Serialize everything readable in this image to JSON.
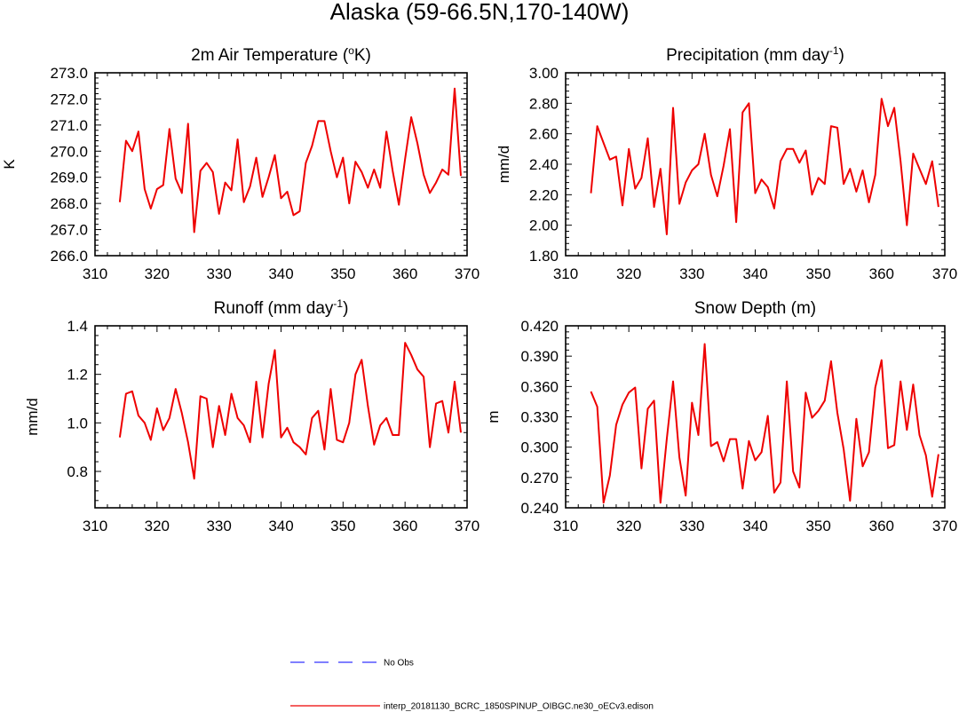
{
  "figure": {
    "title": "Alaska (59-66.5N,170-140W)"
  },
  "legend": {
    "entries": [
      {
        "label": "No Obs",
        "color": "#3333ff",
        "style": "dashed"
      },
      {
        "label": "interp_20181130_BCRC_1850SPINUP_OIBGC.ne30_oECv3.edison",
        "color": "#ee0000",
        "style": "solid"
      }
    ]
  },
  "chart_data": [
    {
      "type": "line",
      "title": "2m Air Temperature (",
      "title_sup": "o",
      "title_end": "K)",
      "ylabel": "K",
      "xlim": [
        310,
        370
      ],
      "ylim": [
        266.0,
        273.0
      ],
      "xticks": [
        310,
        320,
        330,
        340,
        350,
        360,
        370
      ],
      "yticks": [
        "266.0",
        "267.0",
        "268.0",
        "269.0",
        "270.0",
        "271.0",
        "272.0",
        "273.0"
      ],
      "ytick_values": [
        266,
        267,
        268,
        269,
        270,
        271,
        272,
        273
      ],
      "series": [
        {
          "name": "interp_20181130_BCRC_1850SPINUP_OIBGC.ne30_oECv3.edison",
          "color": "#ee0000",
          "x": [
            314,
            315,
            316,
            317,
            318,
            319,
            320,
            321,
            322,
            323,
            324,
            325,
            326,
            327,
            328,
            329,
            330,
            331,
            332,
            333,
            334,
            335,
            336,
            337,
            338,
            339,
            340,
            341,
            342,
            343,
            344,
            345,
            346,
            347,
            348,
            349,
            350,
            351,
            352,
            353,
            354,
            355,
            356,
            357,
            358,
            359,
            360,
            361,
            362,
            363,
            364,
            365,
            366,
            367,
            368,
            369
          ],
          "values": [
            268.05,
            270.4,
            270.0,
            270.75,
            268.55,
            267.8,
            268.55,
            268.7,
            270.85,
            268.95,
            268.4,
            271.05,
            266.9,
            269.25,
            269.55,
            269.2,
            267.6,
            268.8,
            268.5,
            270.45,
            268.05,
            268.65,
            269.75,
            268.25,
            269.0,
            269.85,
            268.2,
            268.45,
            267.55,
            267.7,
            269.55,
            270.2,
            271.15,
            271.15,
            270.0,
            269.0,
            269.75,
            268.0,
            269.6,
            269.2,
            268.6,
            269.3,
            268.6,
            270.75,
            269.25,
            267.95,
            269.7,
            271.3,
            270.3,
            269.1,
            268.4,
            268.8,
            269.3,
            269.1,
            272.4,
            269.05
          ]
        }
      ]
    },
    {
      "type": "line",
      "title": "Precipitation (mm day",
      "title_sup": "-1",
      "title_end": ")",
      "ylabel": "mm/d",
      "xlim": [
        310,
        370
      ],
      "ylim": [
        1.8,
        3.0
      ],
      "xticks": [
        310,
        320,
        330,
        340,
        350,
        360,
        370
      ],
      "yticks": [
        "1.80",
        "2.00",
        "2.20",
        "2.40",
        "2.60",
        "2.80",
        "3.00"
      ],
      "ytick_values": [
        1.8,
        2.0,
        2.2,
        2.4,
        2.6,
        2.8,
        3.0
      ],
      "series": [
        {
          "name": "interp_20181130_BCRC_1850SPINUP_OIBGC.ne30_oECv3.edison",
          "color": "#ee0000",
          "x": [
            314,
            315,
            316,
            317,
            318,
            319,
            320,
            321,
            322,
            323,
            324,
            325,
            326,
            327,
            328,
            329,
            330,
            331,
            332,
            333,
            334,
            335,
            336,
            337,
            338,
            339,
            340,
            341,
            342,
            343,
            344,
            345,
            346,
            347,
            348,
            349,
            350,
            351,
            352,
            353,
            354,
            355,
            356,
            357,
            358,
            359,
            360,
            361,
            362,
            363,
            364,
            365,
            366,
            367,
            368,
            369
          ],
          "values": [
            2.21,
            2.65,
            2.54,
            2.43,
            2.45,
            2.13,
            2.5,
            2.24,
            2.31,
            2.57,
            2.12,
            2.37,
            1.94,
            2.77,
            2.14,
            2.28,
            2.36,
            2.4,
            2.6,
            2.33,
            2.19,
            2.39,
            2.63,
            2.02,
            2.74,
            2.8,
            2.21,
            2.3,
            2.25,
            2.11,
            2.42,
            2.5,
            2.5,
            2.41,
            2.49,
            2.2,
            2.31,
            2.27,
            2.65,
            2.64,
            2.27,
            2.37,
            2.22,
            2.36,
            2.15,
            2.33,
            2.83,
            2.65,
            2.77,
            2.42,
            2.0,
            2.47,
            2.37,
            2.27,
            2.42,
            2.12
          ]
        }
      ]
    },
    {
      "type": "line",
      "title": "Runoff (mm day",
      "title_sup": "-1",
      "title_end": ")",
      "ylabel": "mm/d",
      "xlim": [
        310,
        370
      ],
      "ylim": [
        0.65,
        1.4
      ],
      "xticks": [
        310,
        320,
        330,
        340,
        350,
        360,
        370
      ],
      "yticks": [
        "0.8",
        "1.0",
        "1.2",
        "1.4"
      ],
      "ytick_values": [
        0.8,
        1.0,
        1.2,
        1.4
      ],
      "series": [
        {
          "name": "interp_20181130_BCRC_1850SPINUP_OIBGC.ne30_oECv3.edison",
          "color": "#ee0000",
          "x": [
            314,
            315,
            316,
            317,
            318,
            319,
            320,
            321,
            322,
            323,
            324,
            325,
            326,
            327,
            328,
            329,
            330,
            331,
            332,
            333,
            334,
            335,
            336,
            337,
            338,
            339,
            340,
            341,
            342,
            343,
            344,
            345,
            346,
            347,
            348,
            349,
            350,
            351,
            352,
            353,
            354,
            355,
            356,
            357,
            358,
            359,
            360,
            361,
            362,
            363,
            364,
            365,
            366,
            367,
            368,
            369
          ],
          "values": [
            0.94,
            1.12,
            1.13,
            1.03,
            1.0,
            0.93,
            1.06,
            0.97,
            1.02,
            1.14,
            1.04,
            0.92,
            0.77,
            1.11,
            1.1,
            0.9,
            1.07,
            0.95,
            1.12,
            1.02,
            0.99,
            0.92,
            1.17,
            0.94,
            1.16,
            1.3,
            0.94,
            0.98,
            0.92,
            0.9,
            0.87,
            1.02,
            1.05,
            0.89,
            1.14,
            0.93,
            0.92,
            1.0,
            1.2,
            1.26,
            1.07,
            0.91,
            0.99,
            1.02,
            0.95,
            0.95,
            1.33,
            1.28,
            1.22,
            1.19,
            0.9,
            1.08,
            1.09,
            0.96,
            1.17,
            0.96
          ]
        }
      ]
    },
    {
      "type": "line",
      "title": "Snow Depth (m)",
      "title_sup": "",
      "title_end": "",
      "ylabel": "m",
      "xlim": [
        310,
        370
      ],
      "ylim": [
        0.24,
        0.42
      ],
      "xticks": [
        310,
        320,
        330,
        340,
        350,
        360,
        370
      ],
      "yticks": [
        "0.240",
        "0.270",
        "0.300",
        "0.330",
        "0.360",
        "0.390",
        "0.420"
      ],
      "ytick_values": [
        0.24,
        0.27,
        0.3,
        0.33,
        0.36,
        0.39,
        0.42
      ],
      "series": [
        {
          "name": "interp_20181130_BCRC_1850SPINUP_OIBGC.ne30_oECv3.edison",
          "color": "#ee0000",
          "x": [
            314,
            315,
            316,
            317,
            318,
            319,
            320,
            321,
            322,
            323,
            324,
            325,
            326,
            327,
            328,
            329,
            330,
            331,
            332,
            333,
            334,
            335,
            336,
            337,
            338,
            339,
            340,
            341,
            342,
            343,
            344,
            345,
            346,
            347,
            348,
            349,
            350,
            351,
            352,
            353,
            354,
            355,
            356,
            357,
            358,
            359,
            360,
            361,
            362,
            363,
            364,
            365,
            366,
            367,
            368,
            369
          ],
          "values": [
            0.355,
            0.34,
            0.245,
            0.272,
            0.322,
            0.342,
            0.354,
            0.359,
            0.279,
            0.338,
            0.346,
            0.245,
            0.308,
            0.365,
            0.29,
            0.252,
            0.344,
            0.312,
            0.402,
            0.301,
            0.305,
            0.286,
            0.308,
            0.308,
            0.259,
            0.306,
            0.287,
            0.295,
            0.331,
            0.255,
            0.265,
            0.365,
            0.276,
            0.26,
            0.354,
            0.329,
            0.336,
            0.346,
            0.385,
            0.334,
            0.298,
            0.247,
            0.328,
            0.281,
            0.295,
            0.359,
            0.386,
            0.299,
            0.302,
            0.365,
            0.317,
            0.362,
            0.312,
            0.292,
            0.251,
            0.293
          ]
        }
      ]
    }
  ]
}
